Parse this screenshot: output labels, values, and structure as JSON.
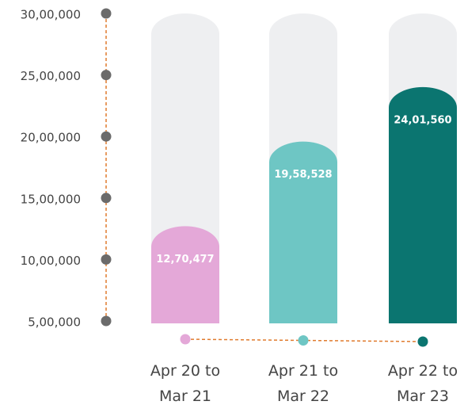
{
  "chart_data": {
    "type": "bar",
    "categories": [
      "Apr 20 to Mar 21",
      "Apr 21 to Mar 22",
      "Apr 22 to Mar 23"
    ],
    "values": [
      1270477,
      1958528,
      2401560
    ],
    "value_labels": [
      "12,70,477",
      "19,58,528",
      "24,01,560"
    ],
    "colors": [
      "#e4a8d8",
      "#6ec6c4",
      "#0b7570"
    ],
    "ylim": [
      500000,
      3000000
    ],
    "yticks": [
      {
        "value": 500000,
        "label": "5,00,000"
      },
      {
        "value": 1000000,
        "label": "10,00,000"
      },
      {
        "value": 1500000,
        "label": "15,00,000"
      },
      {
        "value": 2000000,
        "label": "20,00,000"
      },
      {
        "value": 2500000,
        "label": "25,00,000"
      },
      {
        "value": 3000000,
        "label": "30,00,000"
      }
    ]
  }
}
